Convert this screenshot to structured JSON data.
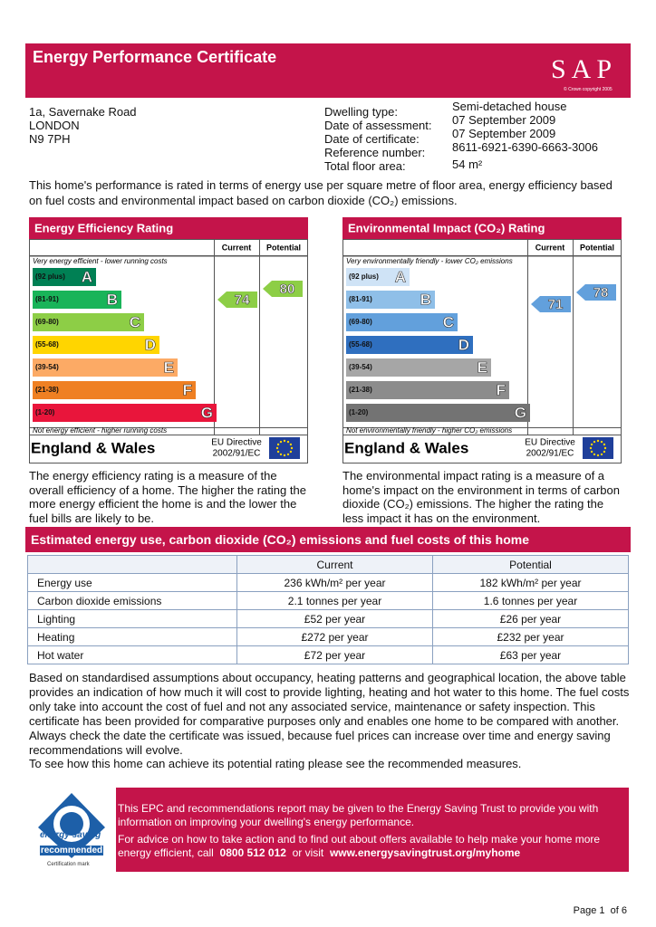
{
  "header": {
    "title": "Energy Performance Certificate",
    "logo": "SAP",
    "logo_note": "© Crown copyright 2005"
  },
  "address": [
    "1a, Savernake Road",
    "LONDON",
    "N9 7PH"
  ],
  "details": [
    {
      "label": "Dwelling type:",
      "value": "Semi-detached house"
    },
    {
      "label": "Date of assessment:",
      "value": "07 September 2009"
    },
    {
      "label": "Date of certificate:",
      "value": "07 September 2009"
    },
    {
      "label": "Reference number:",
      "value": "8611-6921-6390-6663-3006"
    },
    {
      "label": "Total floor area:",
      "value": "54 m²"
    }
  ],
  "intro": "This home's performance is rated in terms of energy use per square metre of floor area, energy efficiency based on fuel costs and environmental impact based on carbon dioxide (CO₂) emissions.",
  "panels": [
    {
      "title": "Energy Efficiency Rating",
      "columns": [
        "Current",
        "Potential"
      ],
      "top_note": "Very energy efficient - lower running costs",
      "bottom_note": "Not energy efficient - higher running costs",
      "bands": [
        {
          "range": "(92 plus)",
          "letter": "A"
        },
        {
          "range": "(81-91)",
          "letter": "B"
        },
        {
          "range": "(69-80)",
          "letter": "C"
        },
        {
          "range": "(55-68)",
          "letter": "D"
        },
        {
          "range": "(39-54)",
          "letter": "E"
        },
        {
          "range": "(21-38)",
          "letter": "F"
        },
        {
          "range": "(1-20)",
          "letter": "G"
        }
      ],
      "current": 74,
      "potential": 80,
      "region": "England & Wales",
      "directive": [
        "EU Directive",
        "2002/91/EC"
      ],
      "description": "The energy efficiency rating is a measure of the overall efficiency of a home. The higher the rating the more energy efficient the home is and the lower the fuel bills are likely to be."
    },
    {
      "title": "Environmental Impact (CO₂) Rating",
      "columns": [
        "Current",
        "Potential"
      ],
      "top_note": "Very environmentally friendly - lower CO₂ emissions",
      "bottom_note": "Not environmentally friendly - higher CO₂ emissions",
      "bands": [
        {
          "range": "(92 plus)",
          "letter": "A"
        },
        {
          "range": "(81-91)",
          "letter": "B"
        },
        {
          "range": "(69-80)",
          "letter": "C"
        },
        {
          "range": "(55-68)",
          "letter": "D"
        },
        {
          "range": "(39-54)",
          "letter": "E"
        },
        {
          "range": "(21-38)",
          "letter": "F"
        },
        {
          "range": "(1-20)",
          "letter": "G"
        }
      ],
      "current": 71,
      "potential": 78,
      "region": "England & Wales",
      "directive": [
        "EU Directive",
        "2002/91/EC"
      ],
      "description": "The environmental impact rating is a measure of a home's impact on the environment in terms of carbon dioxide (CO₂) emissions. The higher the rating the less impact it has on the environment."
    }
  ],
  "estimates": {
    "title": "Estimated energy use, carbon dioxide (CO₂) emissions and fuel costs of this home",
    "columns": [
      "Current",
      "Potential"
    ],
    "rows": [
      [
        "Energy use",
        "236 kWh/m² per year",
        "182 kWh/m² per year"
      ],
      [
        "Carbon dioxide emissions",
        "2.1 tonnes per year",
        "1.6 tonnes per year"
      ],
      [
        "Lighting",
        "£52 per year",
        "£26 per year"
      ],
      [
        "Heating",
        "£272 per year",
        "£232 per year"
      ],
      [
        "Hot water",
        "£72 per year",
        "£63 per year"
      ]
    ]
  },
  "notes": [
    "Based on standardised assumptions about occupancy, heating patterns and geographical location, the above table provides an indication of how much it will cost to provide lighting, heating and hot water to this home. The fuel costs only take into account the cost of fuel and not any associated service, maintenance or safety inspection.  This certificate has been provided for comparative purposes only and enables one home to be compared with another.  Always check the date the certificate was issued, because fuel prices can increase over time and energy saving recommendations will evolve.",
    "To see how this home can achieve its potential rating please see the recommended measures."
  ],
  "footer": {
    "logo": [
      "energy saving",
      "recommended",
      "Certification mark"
    ],
    "text1": "This EPC and recommendations report may be given to the Energy Saving Trust to provide you with information on improving your dwelling's energy performance.",
    "text2": "For advice on how to take action and to find out about offers available to help make your home more energy efficient, call",
    "phone": "0800 512 012",
    "or": "or visit",
    "url": "www.energysavingtrust.org/myhome"
  },
  "page": {
    "label": "Page 1",
    "of": "of 6"
  }
}
